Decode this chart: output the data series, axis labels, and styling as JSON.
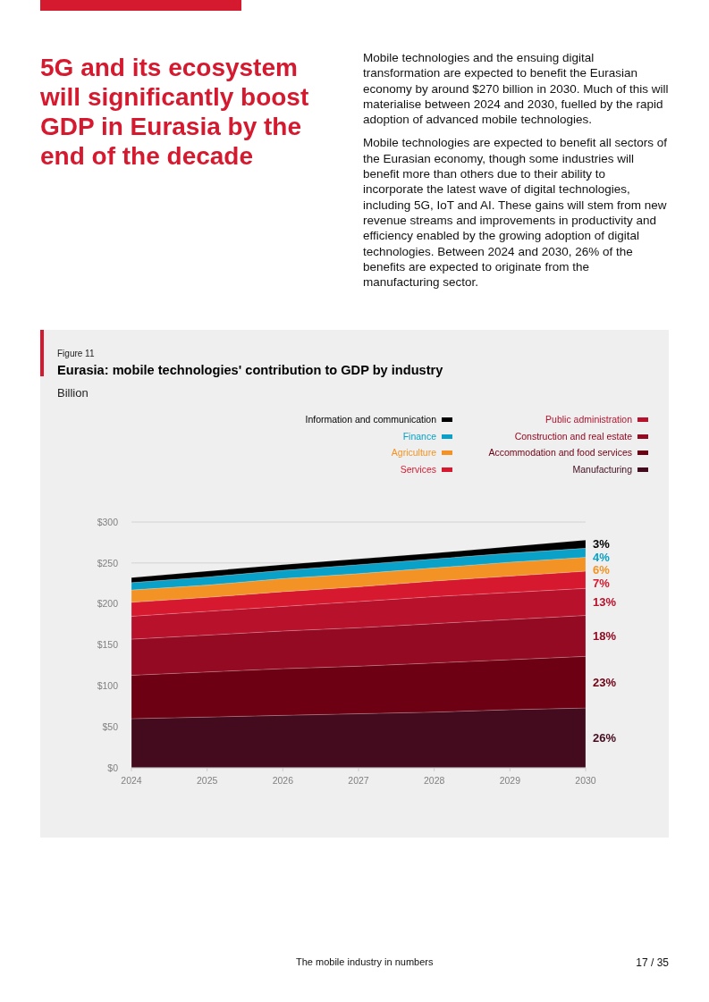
{
  "chart_data": {
    "type": "area",
    "stacked": true,
    "title": "Eurasia: mobile technologies' contribution to GDP by industry",
    "subtitle": "Billion",
    "x": [
      2024,
      2025,
      2026,
      2027,
      2028,
      2029,
      2030
    ],
    "xlim": [
      2024,
      2030
    ],
    "xticks": [
      2024,
      2025,
      2026,
      2027,
      2028,
      2029,
      2030
    ],
    "ylim": [
      0,
      300
    ],
    "yticks": [
      {
        "value": 0,
        "label": "$0"
      },
      {
        "value": 50,
        "label": "$50"
      },
      {
        "value": 100,
        "label": "$100"
      },
      {
        "value": 150,
        "label": "$150"
      },
      {
        "value": 200,
        "label": "$200"
      },
      {
        "value": 250,
        "label": "$250"
      },
      {
        "value": 300,
        "label": "$300"
      }
    ],
    "grid": "y",
    "legend": "top right",
    "series": [
      {
        "name": "Manufacturing",
        "color": "#430b1d",
        "values": [
          60,
          62,
          64,
          66,
          68,
          71,
          73
        ]
      },
      {
        "name": "Accommodation and food services",
        "color": "#6d0012",
        "values": [
          53,
          55,
          57,
          58,
          60,
          61,
          63
        ]
      },
      {
        "name": "Construction and real estate",
        "color": "#930a22",
        "values": [
          44,
          45,
          46,
          47,
          48,
          49,
          50
        ]
      },
      {
        "name": "Public administration",
        "color": "#b8112c",
        "values": [
          28,
          29,
          30,
          32,
          33,
          33,
          33
        ]
      },
      {
        "name": "Services",
        "color": "#d7192f",
        "values": [
          17,
          17,
          18,
          18,
          19,
          20,
          21
        ]
      },
      {
        "name": "Agriculture",
        "color": "#f39325",
        "values": [
          15,
          15,
          16,
          16,
          16,
          17,
          17
        ]
      },
      {
        "name": "Finance",
        "color": "#0aa1c8",
        "values": [
          9,
          10,
          10,
          11,
          11,
          11,
          11
        ]
      },
      {
        "name": "Information and communication",
        "color": "#000000",
        "values": [
          6,
          7,
          7,
          7,
          7,
          8,
          10
        ]
      }
    ],
    "annotations": [
      "Figure 11",
      "5G and its ecosystem will significantly boost GDP in Eurasia by the end of the decade",
      "Mobile technologies and the ensuing digital transformation are expected to benefit the Eurasian economy by around $270 billion in 2030. Much of this will materialise between 2024 and 2030, fuelled by the rapid adoption of advanced mobile technologies.",
      "Mobile technologies are expected to benefit all sectors of the Eurasian economy, though some industries will benefit more than others due to their ability to incorporate the latest wave of digital technologies, including 5G, IoT and AI. These gains will stem from new revenue streams and improvements in productivity and efficiency enabled by the growing adoption of digital technologies. Between 2024 and 2030, 26% of the benefits are expected to originate from the manufacturing sector.",
      "The mobile industry in numbers",
      "17 / 35",
      "3%",
      "4%",
      "6%",
      "7%",
      "13%",
      "18%",
      "23%",
      "26%"
    ]
  }
}
